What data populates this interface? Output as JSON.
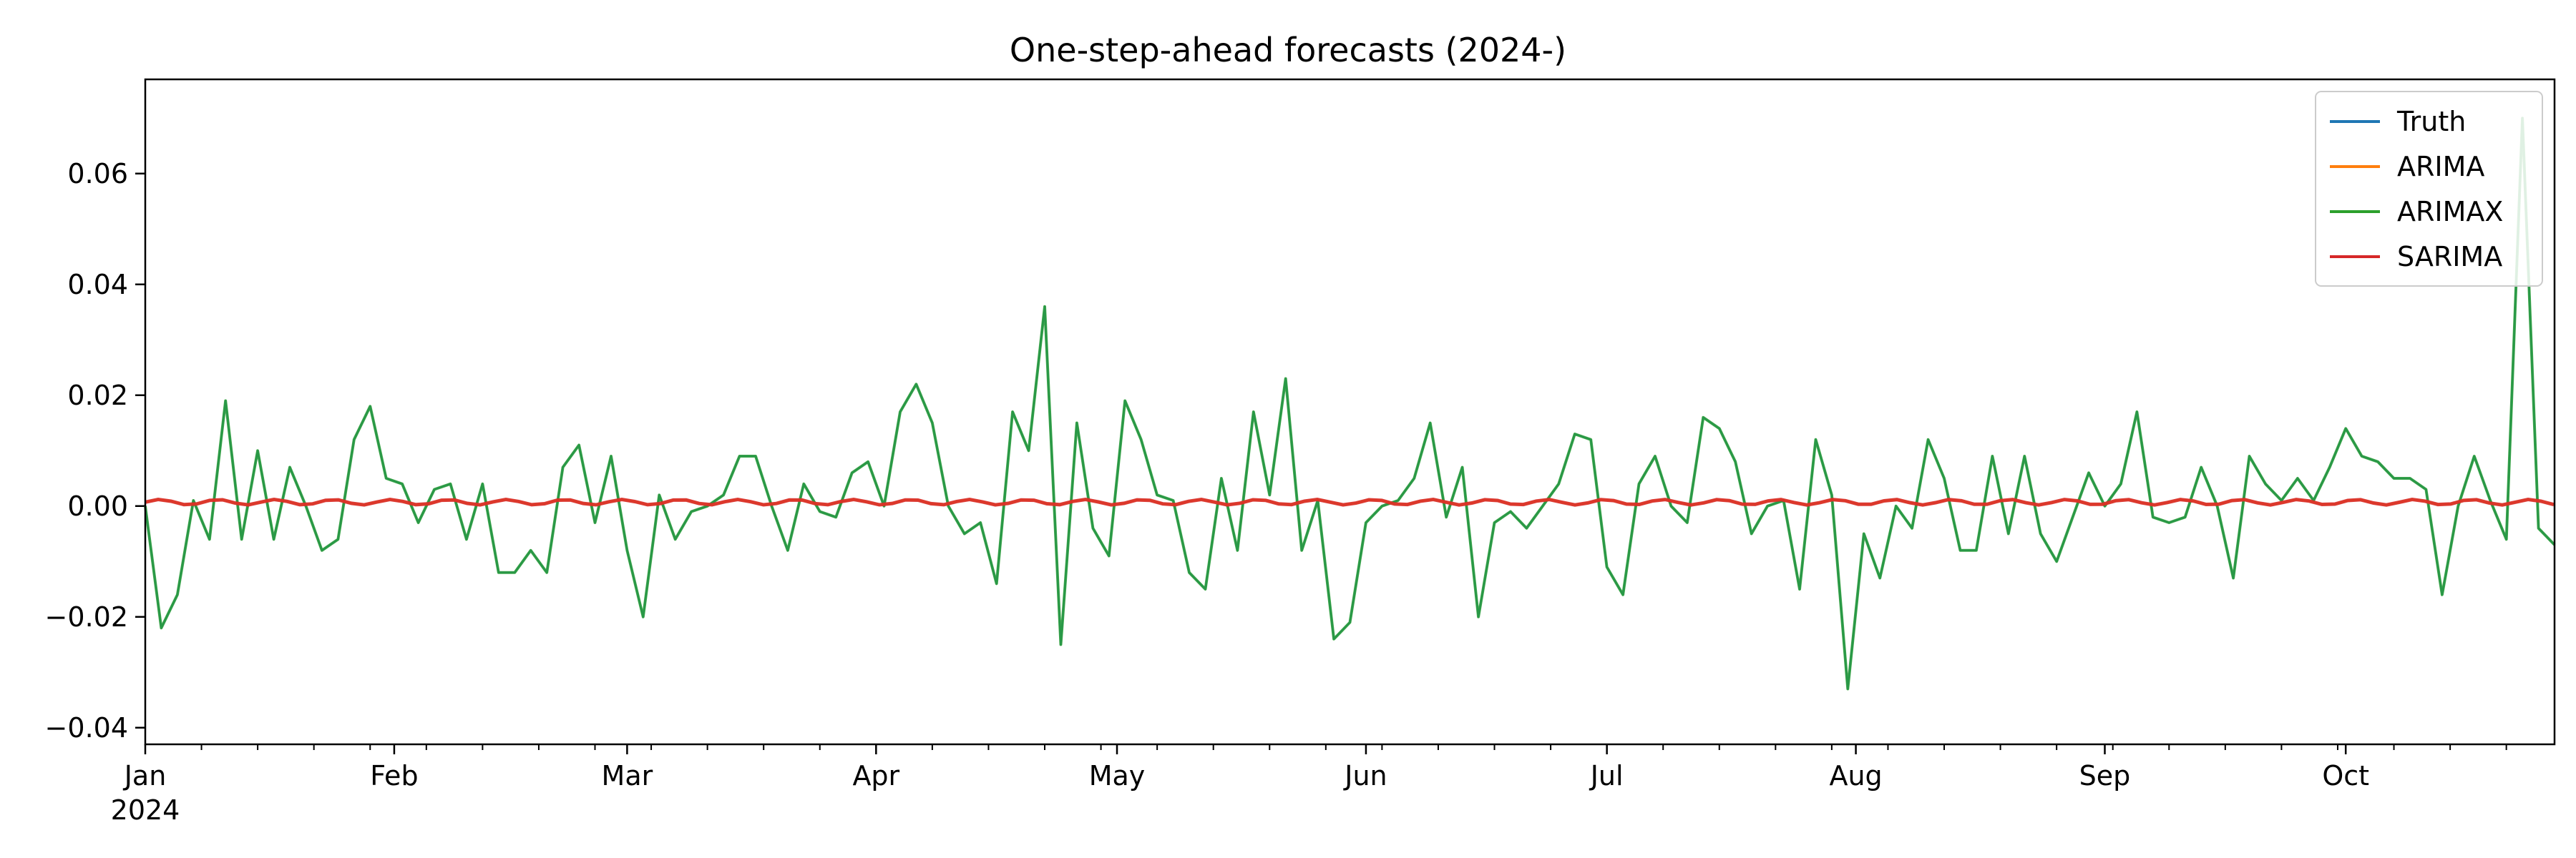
{
  "chart_data": {
    "type": "line",
    "title": "One-step-ahead forecasts (2024-)",
    "xlabel": "",
    "ylabel": "",
    "x_start": "2024-01-01",
    "x_end": "2024-10-27",
    "ylim": [
      -0.043,
      0.077
    ],
    "grid": false,
    "legend_position": "top-right",
    "y_ticks": [
      {
        "value": -0.04,
        "label": "−0.04"
      },
      {
        "value": -0.02,
        "label": "−0.02"
      },
      {
        "value": 0.0,
        "label": "0.00"
      },
      {
        "value": 0.02,
        "label": "0.02"
      },
      {
        "value": 0.04,
        "label": "0.04"
      },
      {
        "value": 0.06,
        "label": "0.06"
      }
    ],
    "x_ticks": [
      {
        "date": "2024-01-01",
        "label": "Jan",
        "sublabel": "2024"
      },
      {
        "date": "2024-02-01",
        "label": "Feb"
      },
      {
        "date": "2024-03-01",
        "label": "Mar"
      },
      {
        "date": "2024-04-01",
        "label": "Apr"
      },
      {
        "date": "2024-05-01",
        "label": "May"
      },
      {
        "date": "2024-06-01",
        "label": "Jun"
      },
      {
        "date": "2024-07-01",
        "label": "Jul"
      },
      {
        "date": "2024-08-01",
        "label": "Aug"
      },
      {
        "date": "2024-09-01",
        "label": "Sep"
      },
      {
        "date": "2024-10-01",
        "label": "Oct"
      }
    ],
    "series": [
      {
        "name": "Truth",
        "color": "#1f77b4",
        "values": [
          [
            "2024-01-01",
            0.0
          ],
          [
            "2024-01-03",
            -0.022
          ],
          [
            "2024-01-05",
            -0.016
          ],
          [
            "2024-01-07",
            0.001
          ],
          [
            "2024-01-09",
            -0.006
          ],
          [
            "2024-01-11",
            0.019
          ],
          [
            "2024-01-13",
            -0.006
          ],
          [
            "2024-01-15",
            0.01
          ],
          [
            "2024-01-17",
            -0.006
          ],
          [
            "2024-01-19",
            0.007
          ],
          [
            "2024-01-21",
            0.0
          ],
          [
            "2024-01-23",
            -0.008
          ],
          [
            "2024-01-25",
            -0.006
          ],
          [
            "2024-01-27",
            0.012
          ],
          [
            "2024-01-29",
            0.018
          ],
          [
            "2024-01-31",
            0.005
          ],
          [
            "2024-02-02",
            0.004
          ],
          [
            "2024-02-04",
            -0.003
          ],
          [
            "2024-02-06",
            0.003
          ],
          [
            "2024-02-08",
            0.004
          ],
          [
            "2024-02-10",
            -0.006
          ],
          [
            "2024-02-12",
            0.004
          ],
          [
            "2024-02-14",
            -0.012
          ],
          [
            "2024-02-16",
            -0.012
          ],
          [
            "2024-02-18",
            -0.008
          ],
          [
            "2024-02-20",
            -0.012
          ],
          [
            "2024-02-22",
            0.007
          ],
          [
            "2024-02-24",
            0.011
          ],
          [
            "2024-02-26",
            -0.003
          ],
          [
            "2024-02-28",
            0.009
          ],
          [
            "2024-03-01",
            -0.008
          ],
          [
            "2024-03-03",
            -0.02
          ],
          [
            "2024-03-05",
            0.002
          ],
          [
            "2024-03-07",
            -0.006
          ],
          [
            "2024-03-09",
            -0.001
          ],
          [
            "2024-03-11",
            0.0
          ],
          [
            "2024-03-13",
            0.002
          ],
          [
            "2024-03-15",
            0.009
          ],
          [
            "2024-03-17",
            0.009
          ],
          [
            "2024-03-19",
            0.0
          ],
          [
            "2024-03-21",
            -0.008
          ],
          [
            "2024-03-23",
            0.004
          ],
          [
            "2024-03-25",
            -0.001
          ],
          [
            "2024-03-27",
            -0.002
          ],
          [
            "2024-03-29",
            0.006
          ],
          [
            "2024-03-31",
            0.008
          ],
          [
            "2024-04-02",
            0.0
          ],
          [
            "2024-04-04",
            0.017
          ],
          [
            "2024-04-06",
            0.022
          ],
          [
            "2024-04-08",
            0.015
          ],
          [
            "2024-04-10",
            0.0
          ],
          [
            "2024-04-12",
            -0.005
          ],
          [
            "2024-04-14",
            -0.003
          ],
          [
            "2024-04-16",
            -0.014
          ],
          [
            "2024-04-18",
            0.017
          ],
          [
            "2024-04-20",
            0.01
          ],
          [
            "2024-04-22",
            0.036
          ],
          [
            "2024-04-24",
            -0.025
          ],
          [
            "2024-04-26",
            0.015
          ],
          [
            "2024-04-28",
            -0.004
          ],
          [
            "2024-04-30",
            -0.009
          ],
          [
            "2024-05-02",
            0.019
          ],
          [
            "2024-05-04",
            0.012
          ],
          [
            "2024-05-06",
            0.002
          ],
          [
            "2024-05-08",
            0.001
          ],
          [
            "2024-05-10",
            -0.012
          ],
          [
            "2024-05-12",
            -0.015
          ],
          [
            "2024-05-14",
            0.005
          ],
          [
            "2024-05-16",
            -0.008
          ],
          [
            "2024-05-18",
            0.017
          ],
          [
            "2024-05-20",
            0.002
          ],
          [
            "2024-05-22",
            0.023
          ],
          [
            "2024-05-24",
            -0.008
          ],
          [
            "2024-05-26",
            0.001
          ],
          [
            "2024-05-28",
            -0.024
          ],
          [
            "2024-05-30",
            -0.021
          ],
          [
            "2024-06-01",
            -0.003
          ],
          [
            "2024-06-03",
            0.0
          ],
          [
            "2024-06-05",
            0.001
          ],
          [
            "2024-06-07",
            0.005
          ],
          [
            "2024-06-09",
            0.015
          ],
          [
            "2024-06-11",
            -0.002
          ],
          [
            "2024-06-13",
            0.007
          ],
          [
            "2024-06-15",
            -0.02
          ],
          [
            "2024-06-17",
            -0.003
          ],
          [
            "2024-06-19",
            -0.001
          ],
          [
            "2024-06-21",
            -0.004
          ],
          [
            "2024-06-23",
            0.0
          ],
          [
            "2024-06-25",
            0.004
          ],
          [
            "2024-06-27",
            0.013
          ],
          [
            "2024-06-29",
            0.012
          ],
          [
            "2024-07-01",
            -0.011
          ],
          [
            "2024-07-03",
            -0.016
          ],
          [
            "2024-07-05",
            0.004
          ],
          [
            "2024-07-07",
            0.009
          ],
          [
            "2024-07-09",
            0.0
          ],
          [
            "2024-07-11",
            -0.003
          ],
          [
            "2024-07-13",
            0.016
          ],
          [
            "2024-07-15",
            0.014
          ],
          [
            "2024-07-17",
            0.008
          ],
          [
            "2024-07-19",
            -0.005
          ],
          [
            "2024-07-21",
            0.0
          ],
          [
            "2024-07-23",
            0.001
          ],
          [
            "2024-07-25",
            -0.015
          ],
          [
            "2024-07-27",
            0.012
          ],
          [
            "2024-07-29",
            0.002
          ],
          [
            "2024-07-31",
            -0.033
          ],
          [
            "2024-08-02",
            -0.005
          ],
          [
            "2024-08-04",
            -0.013
          ],
          [
            "2024-08-06",
            0.0
          ],
          [
            "2024-08-08",
            -0.004
          ],
          [
            "2024-08-10",
            0.012
          ],
          [
            "2024-08-12",
            0.005
          ],
          [
            "2024-08-14",
            -0.008
          ],
          [
            "2024-08-16",
            -0.008
          ],
          [
            "2024-08-18",
            0.009
          ],
          [
            "2024-08-20",
            -0.005
          ],
          [
            "2024-08-22",
            0.009
          ],
          [
            "2024-08-24",
            -0.005
          ],
          [
            "2024-08-26",
            -0.01
          ],
          [
            "2024-08-28",
            -0.002
          ],
          [
            "2024-08-30",
            0.006
          ],
          [
            "2024-09-01",
            0.0
          ],
          [
            "2024-09-03",
            0.004
          ],
          [
            "2024-09-05",
            0.017
          ],
          [
            "2024-09-07",
            -0.002
          ],
          [
            "2024-09-09",
            -0.003
          ],
          [
            "2024-09-11",
            -0.002
          ],
          [
            "2024-09-13",
            0.007
          ],
          [
            "2024-09-15",
            0.0
          ],
          [
            "2024-09-17",
            -0.013
          ],
          [
            "2024-09-19",
            0.009
          ],
          [
            "2024-09-21",
            0.004
          ],
          [
            "2024-09-23",
            0.001
          ],
          [
            "2024-09-25",
            0.005
          ],
          [
            "2024-09-27",
            0.001
          ],
          [
            "2024-09-29",
            0.007
          ],
          [
            "2024-10-01",
            0.014
          ],
          [
            "2024-10-03",
            0.009
          ],
          [
            "2024-10-05",
            0.008
          ],
          [
            "2024-10-07",
            0.005
          ],
          [
            "2024-10-09",
            0.005
          ],
          [
            "2024-10-11",
            0.003
          ],
          [
            "2024-10-13",
            -0.016
          ],
          [
            "2024-10-15",
            0.0
          ],
          [
            "2024-10-17",
            0.009
          ],
          [
            "2024-10-19",
            0.001
          ],
          [
            "2024-10-21",
            -0.006
          ],
          [
            "2024-10-23",
            0.07
          ],
          [
            "2024-10-25",
            -0.004
          ],
          [
            "2024-10-27",
            -0.007
          ]
        ]
      },
      {
        "name": "ARIMA",
        "color": "#ff7f0e",
        "values": []
      },
      {
        "name": "ARIMAX",
        "color": "#2ca02c",
        "values": []
      },
      {
        "name": "SARIMA",
        "color": "#d62728",
        "values": []
      }
    ]
  }
}
